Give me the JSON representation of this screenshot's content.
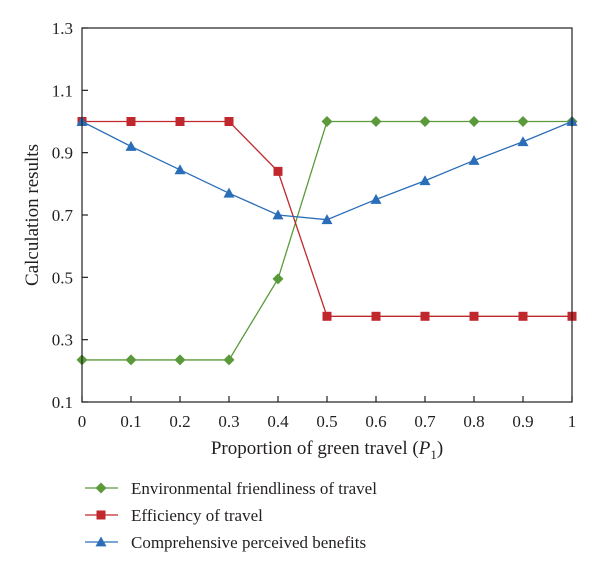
{
  "chart_data": {
    "type": "line",
    "title": "",
    "xlabel": "Proportion of green travel (",
    "xlabel_symbol": "P",
    "xlabel_subscript": "1",
    "xlabel_close": ")",
    "ylabel": "Calculation results",
    "xlim": [
      0,
      1
    ],
    "ylim": [
      0.1,
      1.3
    ],
    "x": [
      0,
      0.1,
      0.2,
      0.3,
      0.4,
      0.5,
      0.6,
      0.7,
      0.8,
      0.9,
      1
    ],
    "x_tick_labels": [
      "0",
      "0.1",
      "0.2",
      "0.3",
      "0.4",
      "0.5",
      "0.6",
      "0.7",
      "0.8",
      "0.9",
      "1"
    ],
    "y_ticks": [
      0.1,
      0.3,
      0.5,
      0.7,
      0.9,
      1.1,
      1.3
    ],
    "y_tick_labels": [
      "0.1",
      "0.3",
      "0.5",
      "0.7",
      "0.9",
      "1.1",
      "1.3"
    ],
    "grid": false,
    "legend_position": "bottom",
    "series": [
      {
        "name": "Environmental friendliness of travel",
        "marker": "diamond",
        "color": "#5a9a3a",
        "values": [
          0.235,
          0.235,
          0.235,
          0.235,
          0.495,
          1.0,
          1.0,
          1.0,
          1.0,
          1.0,
          1.0
        ]
      },
      {
        "name": "Efficiency of travel",
        "marker": "square",
        "color": "#c0282d",
        "values": [
          1.0,
          1.0,
          1.0,
          1.0,
          0.84,
          0.375,
          0.375,
          0.375,
          0.375,
          0.375,
          0.375
        ]
      },
      {
        "name": "Comprehensive perceived benefits",
        "marker": "triangle",
        "color": "#2a6db8",
        "values": [
          1.0,
          0.92,
          0.845,
          0.77,
          0.7,
          0.685,
          0.75,
          0.81,
          0.875,
          0.935,
          1.0
        ]
      }
    ]
  }
}
